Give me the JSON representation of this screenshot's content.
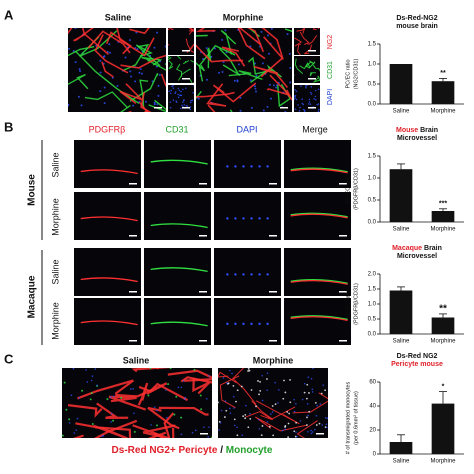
{
  "panel_a": {
    "label": "A",
    "columns": [
      "Saline",
      "Morphine"
    ],
    "channels": [
      "NG2",
      "CD31",
      "DAPI"
    ]
  },
  "panel_b": {
    "label": "B",
    "columns": [
      "PDGFRβ",
      "CD31",
      "DAPI",
      "Merge"
    ],
    "groups": [
      {
        "name": "Mouse",
        "rows": [
          "Saline",
          "Morphine"
        ]
      },
      {
        "name": "Macaque",
        "rows": [
          "Saline",
          "Morphine"
        ]
      }
    ]
  },
  "panel_c": {
    "label": "C",
    "columns": [
      "Saline",
      "Morphine"
    ],
    "caption": [
      {
        "text": "Ds-Red NG2+ Pericyte",
        "color": "#e0202a"
      },
      {
        "text": " / ",
        "color": "#111111"
      },
      {
        "text": "Monocyte",
        "color": "#22a02c"
      }
    ]
  },
  "chart_data": [
    {
      "type": "bar",
      "title": [
        [
          {
            "text": "Ds-Red-NG2",
            "color": "#111111"
          }
        ],
        [
          {
            "text": "mouse brain",
            "color": "#111111"
          }
        ]
      ],
      "ylabel": [
        "PC/EC ratio",
        "(NG2/CD31)"
      ],
      "categories": [
        "Saline",
        "Morphine"
      ],
      "values": [
        1.0,
        0.57
      ],
      "errors": [
        null,
        0.07
      ],
      "value_annotations": [
        null,
        "**"
      ],
      "color": "#111111",
      "ylim": [
        0,
        1.5
      ],
      "yticks": [
        {
          "value": 0,
          "label": "0.0"
        },
        {
          "value": 0.5,
          "label": "0.5"
        },
        {
          "value": 1,
          "label": "1.0"
        },
        {
          "value": 1.5,
          "label": "1.5"
        }
      ]
    },
    {
      "type": "bar",
      "title": [
        [
          {
            "text": "Mouse",
            "color": "#e0202a"
          },
          {
            "text": " Brain",
            "color": "#111111"
          }
        ],
        [
          {
            "text": "Microvessel",
            "color": "#111111"
          }
        ]
      ],
      "ylabel": [
        "PC/EC ratio",
        "(PDGFRβ/CD31)"
      ],
      "categories": [
        "Saline",
        "Morphine"
      ],
      "values": [
        1.2,
        0.25
      ],
      "errors": [
        0.12,
        0.05
      ],
      "value_annotations": [
        null,
        "***"
      ],
      "color": "#111111",
      "ylim": [
        0,
        1.5
      ],
      "yticks": [
        {
          "value": 0,
          "label": "0.0"
        },
        {
          "value": 0.5,
          "label": "0.5"
        },
        {
          "value": 1,
          "label": "1.0"
        },
        {
          "value": 1.5,
          "label": "1.5"
        }
      ]
    },
    {
      "type": "bar",
      "title": [
        [
          {
            "text": "Macaque",
            "color": "#e0202a"
          },
          {
            "text": " Brain",
            "color": "#111111"
          }
        ],
        [
          {
            "text": "Microvessel",
            "color": "#111111"
          }
        ]
      ],
      "ylabel": [
        "PC/EC ratio",
        "(PDGFRβ/CD31)"
      ],
      "categories": [
        "Saline",
        "Morphine"
      ],
      "values": [
        1.45,
        0.55
      ],
      "errors": [
        0.12,
        0.12
      ],
      "value_annotations": [
        null,
        "**"
      ],
      "color": "#111111",
      "ylim": [
        0,
        2
      ],
      "yticks": [
        {
          "value": 0,
          "label": "0.0"
        },
        {
          "value": 0.5,
          "label": "0.5"
        },
        {
          "value": 1,
          "label": "1.0"
        },
        {
          "value": 1.5,
          "label": "1.5"
        },
        {
          "value": 2,
          "label": "2.0"
        }
      ]
    },
    {
      "type": "bar",
      "title": [
        [
          {
            "text": "Ds-Red NG2",
            "color": "#111111"
          }
        ],
        [
          {
            "text": "Pericyte mouse",
            "color": "#e0202a"
          }
        ]
      ],
      "ylabel": [
        "# of transmigrated monocytes",
        "(per 0.6mm² of tissue)"
      ],
      "categories": [
        "Saline",
        "Morphine"
      ],
      "values": [
        10,
        42
      ],
      "errors": [
        6,
        10
      ],
      "value_annotations": [
        null,
        "*"
      ],
      "color": "#111111",
      "ylim": [
        0,
        60
      ],
      "yticks": [
        0,
        20,
        40,
        60
      ]
    }
  ]
}
